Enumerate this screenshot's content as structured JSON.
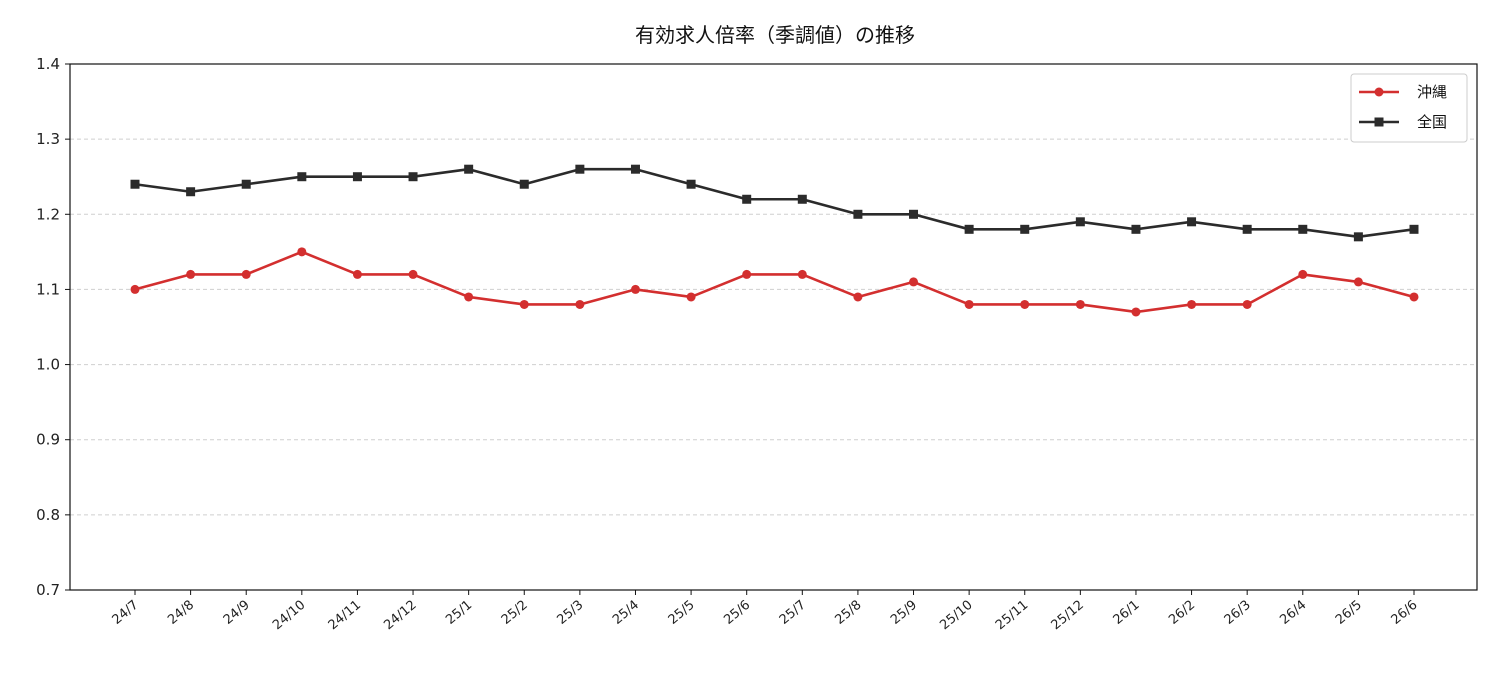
{
  "chart_data": {
    "type": "line",
    "title": "有効求人倍率（季調値）の推移",
    "xlabel": "",
    "ylabel": "",
    "ylim": [
      0.7,
      1.4
    ],
    "yticks": [
      "0.7",
      "0.8",
      "0.9",
      "1.0",
      "1.1",
      "1.2",
      "1.3",
      "1.4"
    ],
    "grid": "horizontal dashed",
    "legend_position": "top-right",
    "categories": [
      "24/7",
      "24/8",
      "24/9",
      "24/10",
      "24/11",
      "24/12",
      "25/1",
      "25/2",
      "25/3",
      "25/4",
      "25/5",
      "25/6",
      "25/7",
      "25/8",
      "25/9",
      "25/10",
      "25/11",
      "25/12",
      "26/1",
      "26/2",
      "26/3",
      "26/4",
      "26/5",
      "26/6"
    ],
    "series": [
      {
        "name": "沖縄",
        "color": "#d32f2f",
        "marker": "circle",
        "values": [
          1.1,
          1.12,
          1.12,
          1.15,
          1.12,
          1.12,
          1.09,
          1.08,
          1.08,
          1.1,
          1.09,
          1.12,
          1.12,
          1.09,
          1.11,
          1.08,
          1.08,
          1.08,
          1.07,
          1.08,
          1.08,
          1.12,
          1.11,
          1.09
        ]
      },
      {
        "name": "全国",
        "color": "#2b2b2b",
        "marker": "square",
        "values": [
          1.24,
          1.23,
          1.24,
          1.25,
          1.25,
          1.25,
          1.26,
          1.24,
          1.26,
          1.26,
          1.24,
          1.22,
          1.22,
          1.2,
          1.2,
          1.18,
          1.18,
          1.19,
          1.18,
          1.19,
          1.18,
          1.18,
          1.17,
          1.18
        ]
      }
    ]
  }
}
